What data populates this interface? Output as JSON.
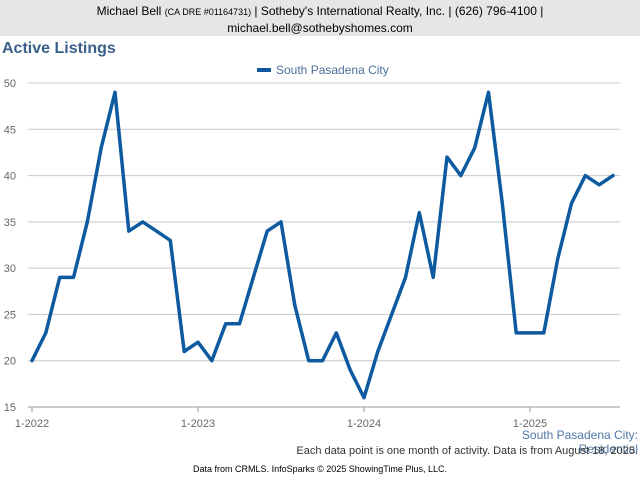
{
  "header": {
    "agent": "Michael Bell",
    "dre": "(CA DRE #01164731)",
    "rest_line1": " | Sotheby's International Realty, Inc. | (626) 796-4100 |",
    "email": "michael.bell@sothebyshomes.com"
  },
  "footer": {
    "series_label": "South Pasadena City: Residential",
    "note": "Each data point is one month of activity. Data is from August 18, 2025.",
    "source": "Data from CRMLS. InfoSparks © 2025 ShowingTime Plus, LLC."
  },
  "chart_data": {
    "type": "line",
    "title": "Active Listings",
    "xlabel": "",
    "ylabel": "",
    "ylim": [
      15,
      50
    ],
    "yticks": [
      15,
      20,
      25,
      30,
      35,
      40,
      45,
      50
    ],
    "xtick_labels": [
      "1-2022",
      "1-2023",
      "1-2024",
      "1-2025"
    ],
    "grid": true,
    "legend_position": "top",
    "x_start": "2022-01",
    "series": [
      {
        "name": "South Pasadena City",
        "color": "#0d5aa0",
        "values": [
          20,
          23,
          29,
          29,
          35,
          43,
          49,
          34,
          35,
          34,
          33,
          21,
          22,
          20,
          24,
          24,
          29,
          34,
          35,
          26,
          20,
          20,
          23,
          19,
          16,
          21,
          25,
          29,
          36,
          29,
          42,
          40,
          43,
          49,
          37,
          23,
          23,
          23,
          31,
          37,
          40,
          39,
          40
        ]
      }
    ]
  }
}
